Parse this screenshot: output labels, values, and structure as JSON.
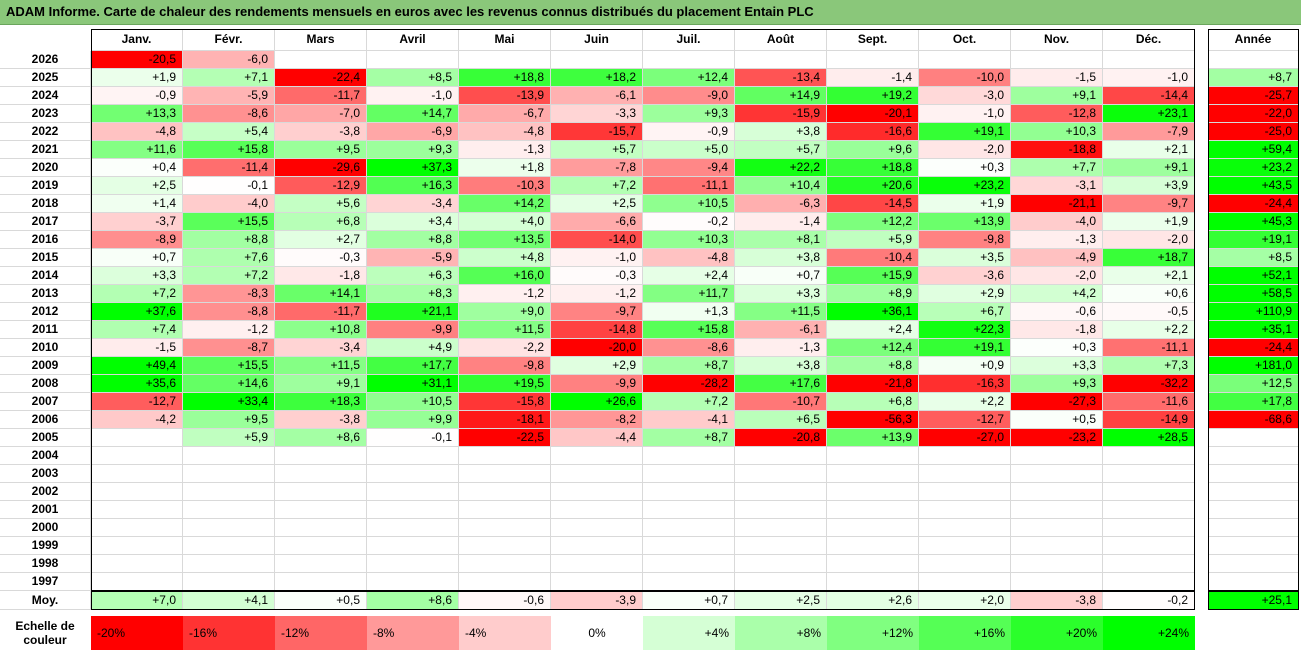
{
  "title": "ADAM Informe. Carte de chaleur des rendements mensuels en euros avec les revenus connus distribués du placement Entain PLC",
  "colors": {
    "header_bg": "#8ac77a",
    "neg_max": "#ff0000",
    "pos_max": "#00ff00",
    "neutral": "#ffffff"
  },
  "chart_data": {
    "type": "heatmap",
    "title": "ADAM Informe. Carte de chaleur des rendements mensuels en euros avec les revenus connus distribués du placement Entain PLC",
    "months": [
      "Janv.",
      "Févr.",
      "Mars",
      "Avril",
      "Mai",
      "Juin",
      "Juil.",
      "Août",
      "Sept.",
      "Oct.",
      "Nov.",
      "Déc."
    ],
    "annual_label": "Année",
    "rows": [
      {
        "year": "2026",
        "values": [
          "-20,5",
          "-6,0",
          "",
          "",
          "",
          "",
          "",
          "",
          "",
          "",
          "",
          ""
        ],
        "annual": ""
      },
      {
        "year": "2025",
        "values": [
          "+1,9",
          "+7,1",
          "-22,4",
          "+8,5",
          "+18,8",
          "+18,2",
          "+12,4",
          "-13,4",
          "-1,4",
          "-10,0",
          "-1,5",
          "-1,0"
        ],
        "annual": "+8,7"
      },
      {
        "year": "2024",
        "values": [
          "-0,9",
          "-5,9",
          "-11,7",
          "-1,0",
          "-13,9",
          "-6,1",
          "-9,0",
          "+14,9",
          "+19,2",
          "-3,0",
          "+9,1",
          "-14,4"
        ],
        "annual": "-25,7"
      },
      {
        "year": "2023",
        "values": [
          "+13,3",
          "-8,6",
          "-7,0",
          "+14,7",
          "-6,7",
          "-3,3",
          "+9,3",
          "-15,9",
          "-20,1",
          "-1,0",
          "-12,8",
          "+23,1"
        ],
        "annual": "-22,0"
      },
      {
        "year": "2022",
        "values": [
          "-4,8",
          "+5,4",
          "-3,8",
          "-6,9",
          "-4,8",
          "-15,7",
          "-0,9",
          "+3,8",
          "-16,6",
          "+19,1",
          "+10,3",
          "-7,9"
        ],
        "annual": "-25,0"
      },
      {
        "year": "2021",
        "values": [
          "+11,6",
          "+15,8",
          "+9,5",
          "+9,3",
          "-1,3",
          "+5,7",
          "+5,0",
          "+5,7",
          "+9,6",
          "-2,0",
          "-18,8",
          "+2,1"
        ],
        "annual": "+59,4"
      },
      {
        "year": "2020",
        "values": [
          "+0,4",
          "-11,4",
          "-29,6",
          "+37,3",
          "+1,8",
          "-7,8",
          "-9,4",
          "+22,2",
          "+18,8",
          "+0,3",
          "+7,7",
          "+9,1"
        ],
        "annual": "+23,2"
      },
      {
        "year": "2019",
        "values": [
          "+2,5",
          "-0,1",
          "-12,9",
          "+16,3",
          "-10,3",
          "+7,2",
          "-11,1",
          "+10,4",
          "+20,6",
          "+23,2",
          "-3,1",
          "+3,9"
        ],
        "annual": "+43,5"
      },
      {
        "year": "2018",
        "values": [
          "+1,4",
          "-4,0",
          "+5,6",
          "-3,4",
          "+14,2",
          "+2,5",
          "+10,5",
          "-6,3",
          "-14,5",
          "+1,9",
          "-21,1",
          "-9,7"
        ],
        "annual": "-24,4"
      },
      {
        "year": "2017",
        "values": [
          "-3,7",
          "+15,5",
          "+6,8",
          "+3,4",
          "+4,0",
          "-6,6",
          "-0,2",
          "-1,4",
          "+12,2",
          "+13,9",
          "-4,0",
          "+1,9"
        ],
        "annual": "+45,3"
      },
      {
        "year": "2016",
        "values": [
          "-8,9",
          "+8,8",
          "+2,7",
          "+8,8",
          "+13,5",
          "-14,0",
          "+10,3",
          "+8,1",
          "+5,9",
          "-9,8",
          "-1,3",
          "-2,0"
        ],
        "annual": "+19,1"
      },
      {
        "year": "2015",
        "values": [
          "+0,7",
          "+7,6",
          "-0,3",
          "-5,9",
          "+4,8",
          "-1,0",
          "-4,8",
          "+3,8",
          "-10,4",
          "+3,5",
          "-4,9",
          "+18,7"
        ],
        "annual": "+8,5"
      },
      {
        "year": "2014",
        "values": [
          "+3,3",
          "+7,2",
          "-1,8",
          "+6,3",
          "+16,0",
          "-0,3",
          "+2,4",
          "+0,7",
          "+15,9",
          "-3,6",
          "-2,0",
          "+2,1"
        ],
        "annual": "+52,1"
      },
      {
        "year": "2013",
        "values": [
          "+7,2",
          "-8,3",
          "+14,1",
          "+8,3",
          "-1,2",
          "-1,2",
          "+11,7",
          "+3,3",
          "+8,9",
          "+2,9",
          "+4,2",
          "+0,6"
        ],
        "annual": "+58,5"
      },
      {
        "year": "2012",
        "values": [
          "+37,6",
          "-8,8",
          "-11,7",
          "+21,1",
          "+9,0",
          "-9,7",
          "+1,3",
          "+11,5",
          "+36,1",
          "+6,7",
          "-0,6",
          "-0,5"
        ],
        "annual": "+110,9"
      },
      {
        "year": "2011",
        "values": [
          "+7,4",
          "-1,2",
          "+10,8",
          "-9,9",
          "+11,5",
          "-14,8",
          "+15,8",
          "-6,1",
          "+2,4",
          "+22,3",
          "-1,8",
          "+2,2"
        ],
        "annual": "+35,1"
      },
      {
        "year": "2010",
        "values": [
          "-1,5",
          "-8,7",
          "-3,4",
          "+4,9",
          "-2,2",
          "-20,0",
          "-8,6",
          "-1,3",
          "+12,4",
          "+19,1",
          "+0,3",
          "-11,1"
        ],
        "annual": "-24,4"
      },
      {
        "year": "2009",
        "values": [
          "+49,4",
          "+15,5",
          "+11,5",
          "+17,7",
          "-9,8",
          "+2,9",
          "+8,7",
          "+3,8",
          "+8,8",
          "+0,9",
          "+3,3",
          "+7,3"
        ],
        "annual": "+181,0"
      },
      {
        "year": "2008",
        "values": [
          "+35,6",
          "+14,6",
          "+9,1",
          "+31,1",
          "+19,5",
          "-9,9",
          "-28,2",
          "+17,6",
          "-21,8",
          "-16,3",
          "+9,3",
          "-32,2"
        ],
        "annual": "+12,5"
      },
      {
        "year": "2007",
        "values": [
          "-12,7",
          "+33,4",
          "+18,3",
          "+10,5",
          "-15,8",
          "+26,6",
          "+7,2",
          "-10,7",
          "+6,8",
          "+2,2",
          "-27,3",
          "-11,6"
        ],
        "annual": "+17,8"
      },
      {
        "year": "2006",
        "values": [
          "-4,2",
          "+9,5",
          "-3,8",
          "+9,9",
          "-18,1",
          "-8,2",
          "-4,1",
          "+6,5",
          "-56,3",
          "-12,7",
          "+0,5",
          "-14,9"
        ],
        "annual": "-68,6"
      },
      {
        "year": "2005",
        "values": [
          "",
          "+5,9",
          "+8,6",
          "-0,1",
          "-22,5",
          "-4,4",
          "+8,7",
          "-20,8",
          "+13,9",
          "-27,0",
          "-23,2",
          "+28,5"
        ],
        "annual": ""
      },
      {
        "year": "2004",
        "values": [
          "",
          "",
          "",
          "",
          "",
          "",
          "",
          "",
          "",
          "",
          "",
          ""
        ],
        "annual": ""
      },
      {
        "year": "2003",
        "values": [
          "",
          "",
          "",
          "",
          "",
          "",
          "",
          "",
          "",
          "",
          "",
          ""
        ],
        "annual": ""
      },
      {
        "year": "2002",
        "values": [
          "",
          "",
          "",
          "",
          "",
          "",
          "",
          "",
          "",
          "",
          "",
          ""
        ],
        "annual": ""
      },
      {
        "year": "2001",
        "values": [
          "",
          "",
          "",
          "",
          "",
          "",
          "",
          "",
          "",
          "",
          "",
          ""
        ],
        "annual": ""
      },
      {
        "year": "2000",
        "values": [
          "",
          "",
          "",
          "",
          "",
          "",
          "",
          "",
          "",
          "",
          "",
          ""
        ],
        "annual": ""
      },
      {
        "year": "1999",
        "values": [
          "",
          "",
          "",
          "",
          "",
          "",
          "",
          "",
          "",
          "",
          "",
          ""
        ],
        "annual": ""
      },
      {
        "year": "1998",
        "values": [
          "",
          "",
          "",
          "",
          "",
          "",
          "",
          "",
          "",
          "",
          "",
          ""
        ],
        "annual": ""
      },
      {
        "year": "1997",
        "values": [
          "",
          "",
          "",
          "",
          "",
          "",
          "",
          "",
          "",
          "",
          "",
          ""
        ],
        "annual": ""
      }
    ],
    "average": {
      "label": "Moy.",
      "values": [
        "+7,0",
        "+4,1",
        "+0,5",
        "+8,6",
        "-0,6",
        "-3,9",
        "+0,7",
        "+2,5",
        "+2,6",
        "+2,0",
        "-3,8",
        "-0,2"
      ],
      "annual": "+25,1"
    },
    "scale": {
      "label": "Echelle de couleur",
      "labels": [
        "-20%",
        "-16%",
        "-12%",
        "-8%",
        "-4%",
        "0%",
        "+4%",
        "+8%",
        "+12%",
        "+16%",
        "+20%",
        "+24%"
      ]
    }
  }
}
